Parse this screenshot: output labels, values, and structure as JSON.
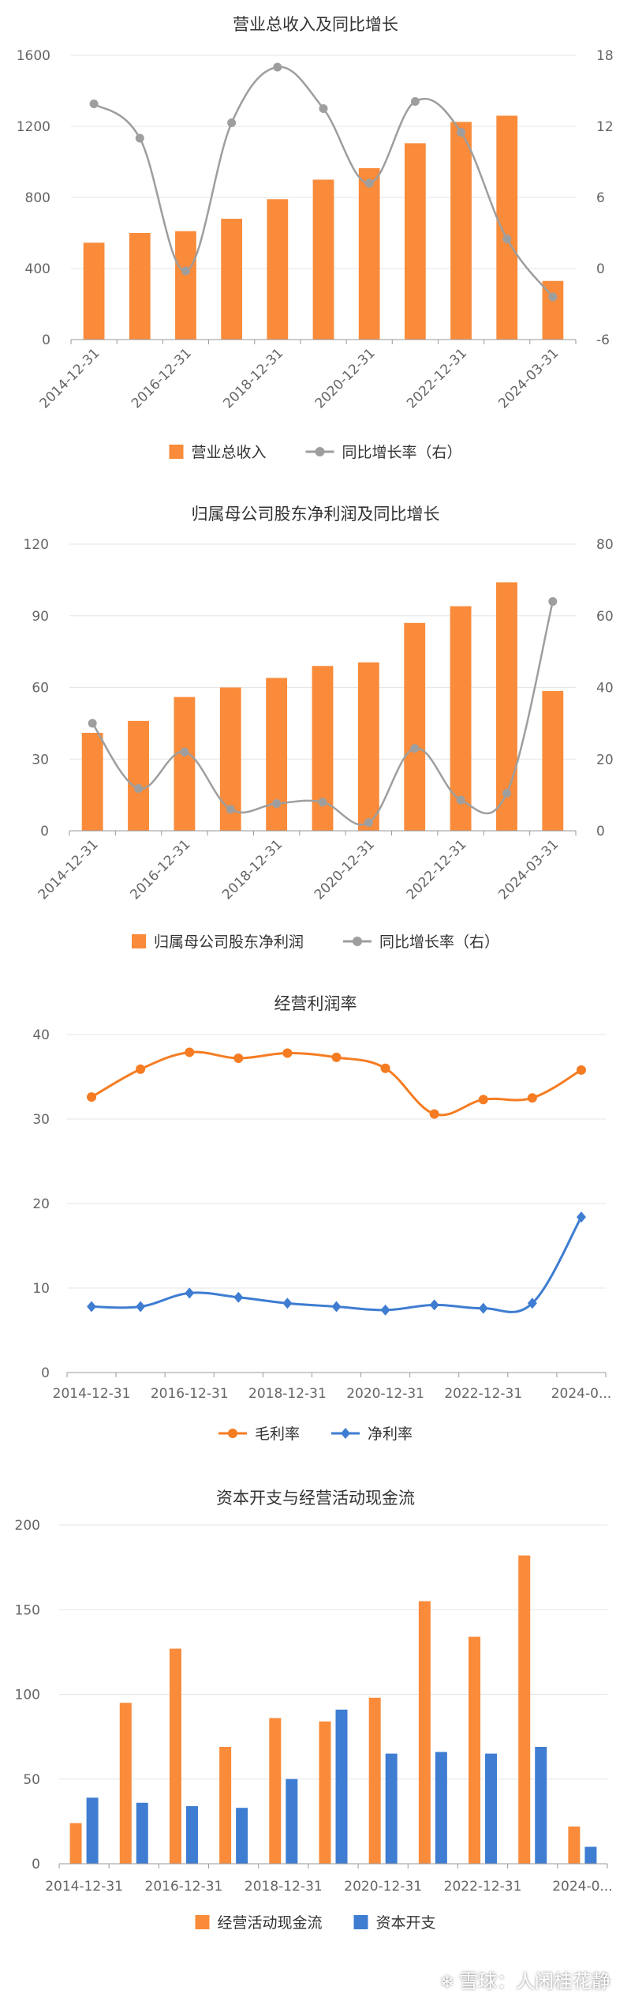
{
  "colors": {
    "orange": "#F98B3A",
    "gray": "#9E9E9E",
    "blue": "#3E7DD1",
    "linecol_orange": "#F57C22"
  },
  "watermark": {
    "text": "雪球：人闲桂花静",
    "icon": "snowball-icon"
  },
  "chart_data": [
    {
      "type": "bar+line",
      "title": "营业总收入及同比增长",
      "categories": [
        "2014-12-31",
        "2015-12-31",
        "2016-12-31",
        "2017-12-31",
        "2018-12-31",
        "2019-12-31",
        "2020-12-31",
        "2021-12-31",
        "2022-12-31",
        "2023-12-31",
        "2024-03-31"
      ],
      "x_tick_labels": [
        "2014-12-31",
        "2016-12-31",
        "2018-12-31",
        "2020-12-31",
        "2022-12-31",
        "2024-03-31"
      ],
      "series": [
        {
          "name": "营业总收入",
          "kind": "bar",
          "axis": "left",
          "values": [
            545,
            600,
            610,
            680,
            790,
            900,
            965,
            1105,
            1225,
            1260,
            330
          ]
        },
        {
          "name": "同比增长率（右）",
          "kind": "line",
          "axis": "right",
          "values": [
            13.9,
            11,
            -0.2,
            12.3,
            17,
            13.5,
            7.2,
            14.1,
            11.5,
            2.5,
            -2.4
          ]
        }
      ],
      "y_left": {
        "min": 0,
        "max": 1600,
        "ticks": [
          "0",
          "400",
          "800",
          "1200",
          "1600"
        ]
      },
      "y_right": {
        "min": -6,
        "max": 18,
        "ticks": [
          "-6",
          "0",
          "6",
          "12",
          "18"
        ]
      },
      "legend": [
        "营业总收入",
        "同比增长率（右）"
      ]
    },
    {
      "type": "bar+line",
      "title": "归属母公司股东净利润及同比增长",
      "categories": [
        "2014-12-31",
        "2015-12-31",
        "2016-12-31",
        "2017-12-31",
        "2018-12-31",
        "2019-12-31",
        "2020-12-31",
        "2021-12-31",
        "2022-12-31",
        "2023-12-31",
        "2024-03-31"
      ],
      "x_tick_labels": [
        "2014-12-31",
        "2016-12-31",
        "2018-12-31",
        "2020-12-31",
        "2022-12-31",
        "2024-03-31"
      ],
      "series": [
        {
          "name": "归属母公司股东净利润",
          "kind": "bar",
          "axis": "left",
          "values": [
            41,
            46,
            56,
            60,
            64,
            69,
            70.5,
            87,
            94,
            104,
            58.5
          ]
        },
        {
          "name": "同比增长率（右）",
          "kind": "line",
          "axis": "right",
          "values": [
            30,
            11.8,
            22,
            6,
            7.6,
            8,
            2.3,
            23,
            8.6,
            10.5,
            64
          ]
        }
      ],
      "y_left": {
        "min": 0,
        "max": 120,
        "ticks": [
          "0",
          "30",
          "60",
          "90",
          "120"
        ]
      },
      "y_right": {
        "min": 0,
        "max": 80,
        "ticks": [
          "0",
          "20",
          "40",
          "60",
          "80"
        ]
      },
      "legend": [
        "归属母公司股东净利润",
        "同比增长率（右）"
      ]
    },
    {
      "type": "line",
      "title": "经营利润率",
      "categories": [
        "2014-12-31",
        "2015-12-31",
        "2016-12-31",
        "2017-12-31",
        "2018-12-31",
        "2019-12-31",
        "2020-12-31",
        "2021-12-31",
        "2022-12-31",
        "2023-12-31",
        "2024-03-31"
      ],
      "x_tick_labels": [
        "2014-12-31",
        "2016-12-31",
        "2018-12-31",
        "2020-12-31",
        "2022-12-31",
        "2024-0..."
      ],
      "series": [
        {
          "name": "毛利率",
          "values": [
            32.6,
            35.9,
            37.9,
            37.2,
            37.8,
            37.3,
            36.0,
            30.6,
            32.3,
            32.5,
            35.8
          ]
        },
        {
          "name": "净利率",
          "values": [
            7.8,
            7.8,
            9.4,
            8.9,
            8.2,
            7.8,
            7.4,
            8.0,
            7.6,
            8.2,
            18.4
          ]
        }
      ],
      "y": {
        "min": 0,
        "max": 40,
        "ticks": [
          "0",
          "10",
          "20",
          "30",
          "40"
        ]
      },
      "legend": [
        "毛利率",
        "净利率"
      ]
    },
    {
      "type": "bar",
      "title": "资本开支与经营活动现金流",
      "categories": [
        "2014-12-31",
        "2015-12-31",
        "2016-12-31",
        "2017-12-31",
        "2018-12-31",
        "2019-12-31",
        "2020-12-31",
        "2021-12-31",
        "2022-12-31",
        "2023-12-31",
        "2024-03-31"
      ],
      "x_tick_labels": [
        "2014-12-31",
        "2016-12-31",
        "2018-12-31",
        "2020-12-31",
        "2022-12-31",
        "2024-0..."
      ],
      "series": [
        {
          "name": "经营活动现金流",
          "values": [
            24,
            95,
            127,
            69,
            86,
            84,
            98,
            155,
            134,
            182,
            22
          ]
        },
        {
          "name": "资本开支",
          "values": [
            39,
            36,
            34,
            33,
            50,
            91,
            65,
            66,
            65,
            69,
            10
          ]
        }
      ],
      "y": {
        "min": 0,
        "max": 200,
        "ticks": [
          "0",
          "50",
          "100",
          "150",
          "200"
        ]
      },
      "legend": [
        "经营活动现金流",
        "资本开支"
      ]
    }
  ]
}
